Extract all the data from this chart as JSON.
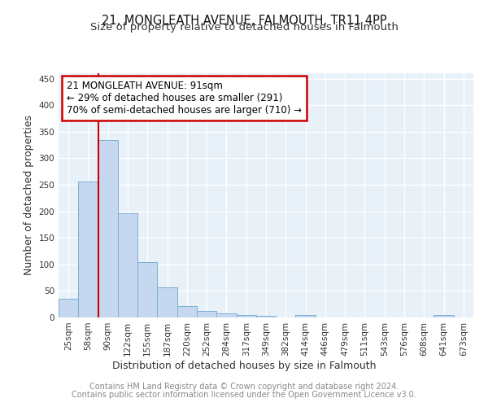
{
  "title": "21, MONGLEATH AVENUE, FALMOUTH, TR11 4PP",
  "subtitle": "Size of property relative to detached houses in Falmouth",
  "xlabel": "Distribution of detached houses by size in Falmouth",
  "ylabel": "Number of detached properties",
  "categories": [
    "25sqm",
    "58sqm",
    "90sqm",
    "122sqm",
    "155sqm",
    "187sqm",
    "220sqm",
    "252sqm",
    "284sqm",
    "317sqm",
    "349sqm",
    "382sqm",
    "414sqm",
    "446sqm",
    "479sqm",
    "511sqm",
    "543sqm",
    "576sqm",
    "608sqm",
    "641sqm",
    "673sqm"
  ],
  "values": [
    35,
    256,
    335,
    197,
    104,
    56,
    21,
    12,
    8,
    5,
    3,
    0,
    5,
    0,
    0,
    0,
    0,
    0,
    0,
    4,
    0
  ],
  "bar_color": "#c5d8f0",
  "bar_edgecolor": "#7bafd4",
  "ylim": [
    0,
    460
  ],
  "yticks": [
    0,
    50,
    100,
    150,
    200,
    250,
    300,
    350,
    400,
    450
  ],
  "property_index": 2,
  "property_line_color": "#cc0000",
  "annotation_line1": "21 MONGLEATH AVENUE: 91sqm",
  "annotation_line2": "← 29% of detached houses are smaller (291)",
  "annotation_line3": "70% of semi-detached houses are larger (710) →",
  "annotation_box_color": "#cc0000",
  "footer_line1": "Contains HM Land Registry data © Crown copyright and database right 2024.",
  "footer_line2": "Contains public sector information licensed under the Open Government Licence v3.0.",
  "bg_color": "#e8f0f8",
  "title_fontsize": 10.5,
  "subtitle_fontsize": 9.5,
  "axis_label_fontsize": 9,
  "tick_fontsize": 7.5,
  "footer_fontsize": 7,
  "annotation_fontsize": 8.5
}
